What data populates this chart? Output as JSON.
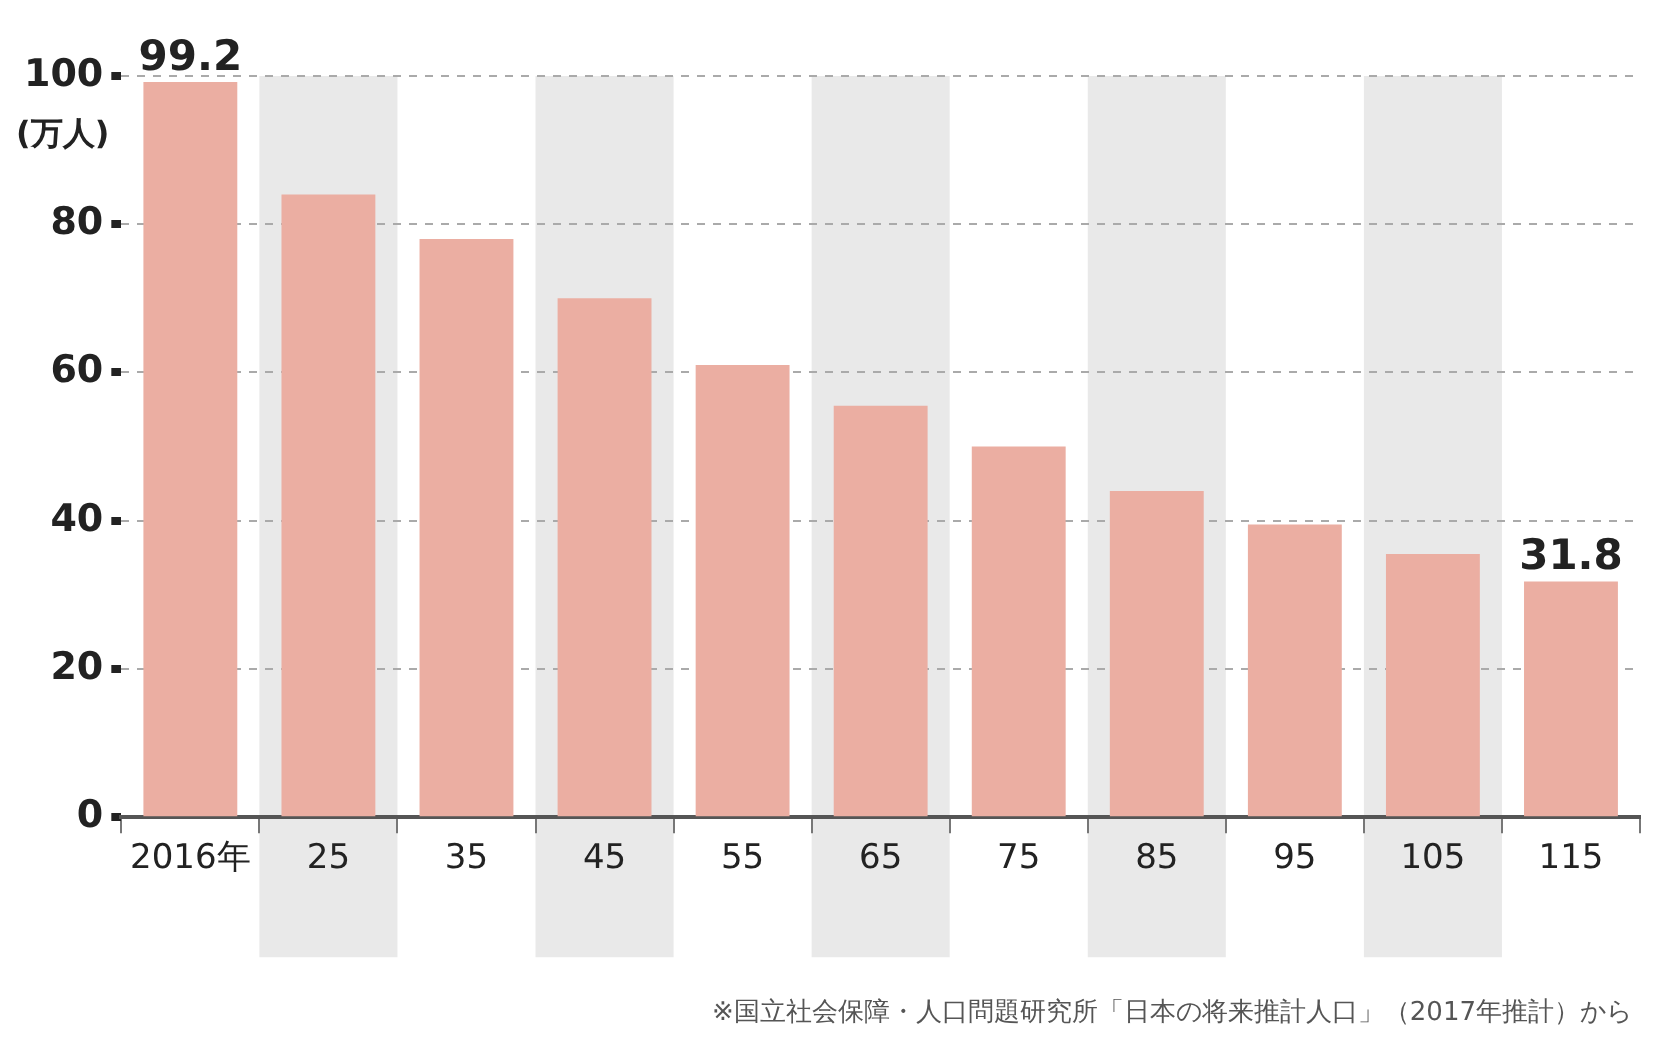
{
  "chart_data": {
    "type": "bar",
    "ylabel": "(万人)",
    "categories": [
      "2016年",
      "25",
      "35",
      "45",
      "55",
      "65",
      "75",
      "85",
      "95",
      "105",
      "115"
    ],
    "values": [
      99.2,
      84,
      78,
      70,
      61,
      55.5,
      50,
      44,
      39.5,
      35.5,
      31.8
    ],
    "value_labels": [
      "99.2",
      null,
      null,
      null,
      null,
      null,
      null,
      null,
      null,
      null,
      "31.8"
    ],
    "color": "#ebaea2",
    "ylim": [
      0,
      100
    ],
    "yticks": [
      0,
      20,
      40,
      60,
      80,
      100
    ],
    "grid": "y",
    "line_style": "dashed",
    "bands": [
      {
        "axis": "x",
        "from": "25",
        "to": "25",
        "color": "#e9e9e9"
      },
      {
        "axis": "x",
        "from": "45",
        "to": "45",
        "color": "#e9e9e9"
      },
      {
        "axis": "x",
        "from": "65",
        "to": "65",
        "color": "#e9e9e9"
      },
      {
        "axis": "x",
        "from": "85",
        "to": "85",
        "color": "#e9e9e9"
      },
      {
        "axis": "x",
        "from": "105",
        "to": "105",
        "color": "#e9e9e9"
      }
    ],
    "annotations": [
      "※国立社会保障・人口問題研究所「日本の将来推計人口」（2017年推計）から"
    ]
  }
}
